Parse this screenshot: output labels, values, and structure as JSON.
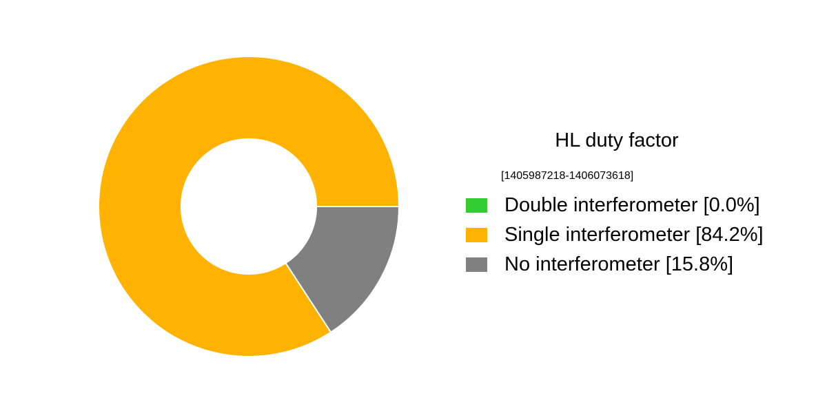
{
  "page": {
    "background_color": "#ffffff",
    "text_color": "#000000"
  },
  "chart_data": {
    "type": "pie",
    "variant": "donut",
    "title": "HL duty factor",
    "subtitle": "[1405987218-1406073618]",
    "gps_start": "1405987218",
    "gps_end": "1406073618",
    "start_angle_deg": 0,
    "direction": "counterclockwise",
    "inner_radius_ratio": 0.45,
    "wedge_edge_color": "#ffffff",
    "legend_position": "right",
    "slices": [
      {
        "label": "Double interferometer",
        "value_pct": 0.0,
        "color": "#33cc33"
      },
      {
        "label": "Single interferometer",
        "value_pct": 84.2,
        "color": "#ffb300"
      },
      {
        "label": "No interferometer",
        "value_pct": 15.8,
        "color": "#808080"
      }
    ]
  },
  "legend": {
    "entries": [
      {
        "label": "Double interferometer [0.0%]",
        "color": "#33cc33"
      },
      {
        "label": "Single interferometer [84.2%]",
        "color": "#ffb300"
      },
      {
        "label": "No interferometer [15.8%]",
        "color": "#808080"
      }
    ]
  }
}
